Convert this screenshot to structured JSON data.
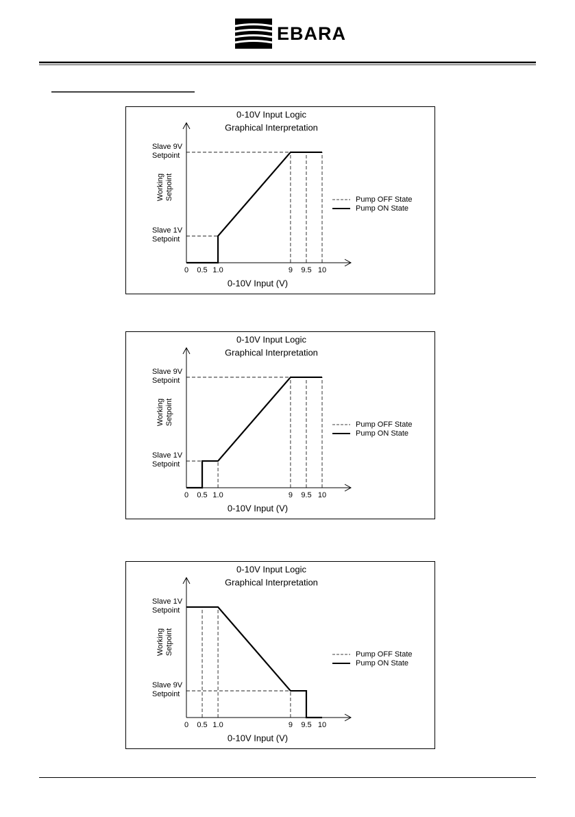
{
  "header": {
    "logo": "EBARA"
  },
  "chart_data": [
    {
      "type": "line",
      "title": "0-10V Input Logic",
      "subtitle": "Graphical Interpretation",
      "x_label": "0-10V Input (V)",
      "y_label": "Working Setpoint",
      "xlim": [
        0,
        10
      ],
      "xticks": [
        0,
        0.5,
        {
          "value": 1,
          "label": "1.0"
        },
        9,
        9.5,
        10
      ],
      "ylim": [
        0,
        10
      ],
      "yticks": [
        {
          "value": 1,
          "label": "Slave 1V Setpoint"
        },
        {
          "value": 9,
          "label": "Slave 9V Setpoint"
        }
      ],
      "guide_label": "Pump OFF State",
      "x": [
        0,
        1,
        1,
        9,
        10
      ],
      "series": [
        {
          "name": "Pump ON State",
          "color": "#000000",
          "values": [
            0,
            0,
            1,
            9,
            9
          ]
        }
      ]
    },
    {
      "type": "line",
      "title": "0-10V Input Logic",
      "subtitle": "Graphical Interpretation",
      "x_label": "0-10V Input (V)",
      "y_label": "Working Setpoint",
      "xlim": [
        0,
        10
      ],
      "xticks": [
        0,
        0.5,
        {
          "value": 1,
          "label": "1.0"
        },
        9,
        9.5,
        10
      ],
      "ylim": [
        0,
        10
      ],
      "yticks": [
        {
          "value": 1,
          "label": "Slave 1V Setpoint"
        },
        {
          "value": 9,
          "label": "Slave 9V Setpoint"
        }
      ],
      "guide_label": "Pump OFF State",
      "x": [
        0,
        0.5,
        0.5,
        1,
        9,
        10
      ],
      "series": [
        {
          "name": "Pump ON State",
          "color": "#000000",
          "values": [
            0,
            0,
            1,
            1,
            9,
            9
          ]
        }
      ]
    },
    {
      "type": "line",
      "title": "0-10V Input Logic",
      "subtitle": "Graphical Interpretation",
      "x_label": "0-10V Input (V)",
      "y_label": "Working Setpoint",
      "xlim": [
        0,
        10
      ],
      "xticks": [
        0,
        0.5,
        {
          "value": 1,
          "label": "1.0"
        },
        9,
        9.5,
        10
      ],
      "ylim": [
        10,
        0
      ],
      "yticks": [
        {
          "value": 1,
          "label": "Slave 1V Setpoint"
        },
        {
          "value": 9,
          "label": "Slave 9V Setpoint"
        }
      ],
      "guide_label": "Pump OFF State",
      "x": [
        0,
        1,
        9,
        9.5,
        9.5,
        10
      ],
      "series": [
        {
          "name": "Pump ON State",
          "color": "#000000",
          "values": [
            1,
            1,
            9,
            9,
            10,
            10
          ]
        }
      ]
    }
  ]
}
